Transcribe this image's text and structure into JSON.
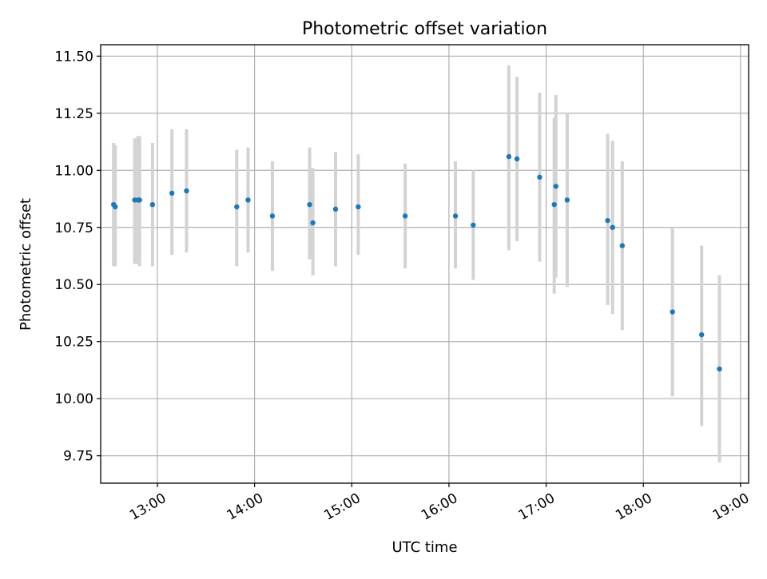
{
  "chart_data": {
    "type": "scatter",
    "title": "Photometric offset variation",
    "xlabel": "UTC time",
    "ylabel": "Photometric offset",
    "grid": true,
    "xlim": [
      "12:25",
      "19:05"
    ],
    "ylim": [
      9.63,
      11.55
    ],
    "x_ticks": [
      "13:00",
      "14:00",
      "15:00",
      "16:00",
      "17:00",
      "18:00",
      "19:00"
    ],
    "y_ticks": [
      "9.75",
      "10.00",
      "10.25",
      "10.50",
      "10.75",
      "11.00",
      "11.25",
      "11.50"
    ],
    "colors": {
      "points": "#1f77b4",
      "errorbars": "#d3d3d3",
      "grid": "#b0b0b0"
    },
    "series": [
      {
        "points": [
          {
            "x": "12:33",
            "y": 10.85,
            "err_low": 10.58,
            "err_high": 11.12
          },
          {
            "x": "12:34",
            "y": 10.84,
            "err_low": 10.58,
            "err_high": 11.11
          },
          {
            "x": "12:46",
            "y": 10.87,
            "err_low": 10.59,
            "err_high": 11.14
          },
          {
            "x": "12:48",
            "y": 10.87,
            "err_low": 10.59,
            "err_high": 11.15
          },
          {
            "x": "12:49",
            "y": 10.87,
            "err_low": 10.58,
            "err_high": 11.15
          },
          {
            "x": "12:57",
            "y": 10.85,
            "err_low": 10.58,
            "err_high": 11.12
          },
          {
            "x": "13:09",
            "y": 10.9,
            "err_low": 10.63,
            "err_high": 11.18
          },
          {
            "x": "13:18",
            "y": 10.91,
            "err_low": 10.64,
            "err_high": 11.18
          },
          {
            "x": "13:49",
            "y": 10.84,
            "err_low": 10.58,
            "err_high": 11.09
          },
          {
            "x": "13:56",
            "y": 10.87,
            "err_low": 10.64,
            "err_high": 11.1
          },
          {
            "x": "14:11",
            "y": 10.8,
            "err_low": 10.56,
            "err_high": 11.04
          },
          {
            "x": "14:34",
            "y": 10.85,
            "err_low": 10.61,
            "err_high": 11.1
          },
          {
            "x": "14:36",
            "y": 10.77,
            "err_low": 10.54,
            "err_high": 11.01
          },
          {
            "x": "14:50",
            "y": 10.83,
            "err_low": 10.58,
            "err_high": 11.08
          },
          {
            "x": "15:04",
            "y": 10.84,
            "err_low": 10.63,
            "err_high": 11.07
          },
          {
            "x": "15:33",
            "y": 10.8,
            "err_low": 10.57,
            "err_high": 11.03
          },
          {
            "x": "16:04",
            "y": 10.8,
            "err_low": 10.57,
            "err_high": 11.04
          },
          {
            "x": "16:15",
            "y": 10.76,
            "err_low": 10.52,
            "err_high": 11.0
          },
          {
            "x": "16:37",
            "y": 11.06,
            "err_low": 10.65,
            "err_high": 11.46
          },
          {
            "x": "16:42",
            "y": 11.05,
            "err_low": 10.69,
            "err_high": 11.41
          },
          {
            "x": "16:56",
            "y": 10.97,
            "err_low": 10.6,
            "err_high": 11.34
          },
          {
            "x": "17:05",
            "y": 10.85,
            "err_low": 10.46,
            "err_high": 11.23
          },
          {
            "x": "17:06",
            "y": 10.93,
            "err_low": 10.53,
            "err_high": 11.33
          },
          {
            "x": "17:13",
            "y": 10.87,
            "err_low": 10.49,
            "err_high": 11.25
          },
          {
            "x": "17:38",
            "y": 10.78,
            "err_low": 10.41,
            "err_high": 11.16
          },
          {
            "x": "17:41",
            "y": 10.75,
            "err_low": 10.37,
            "err_high": 11.13
          },
          {
            "x": "17:47",
            "y": 10.67,
            "err_low": 10.3,
            "err_high": 11.04
          },
          {
            "x": "18:18",
            "y": 10.38,
            "err_low": 10.01,
            "err_high": 10.75
          },
          {
            "x": "18:36",
            "y": 10.28,
            "err_low": 9.88,
            "err_high": 10.67
          },
          {
            "x": "18:47",
            "y": 10.13,
            "err_low": 9.72,
            "err_high": 10.54
          }
        ]
      }
    ]
  }
}
